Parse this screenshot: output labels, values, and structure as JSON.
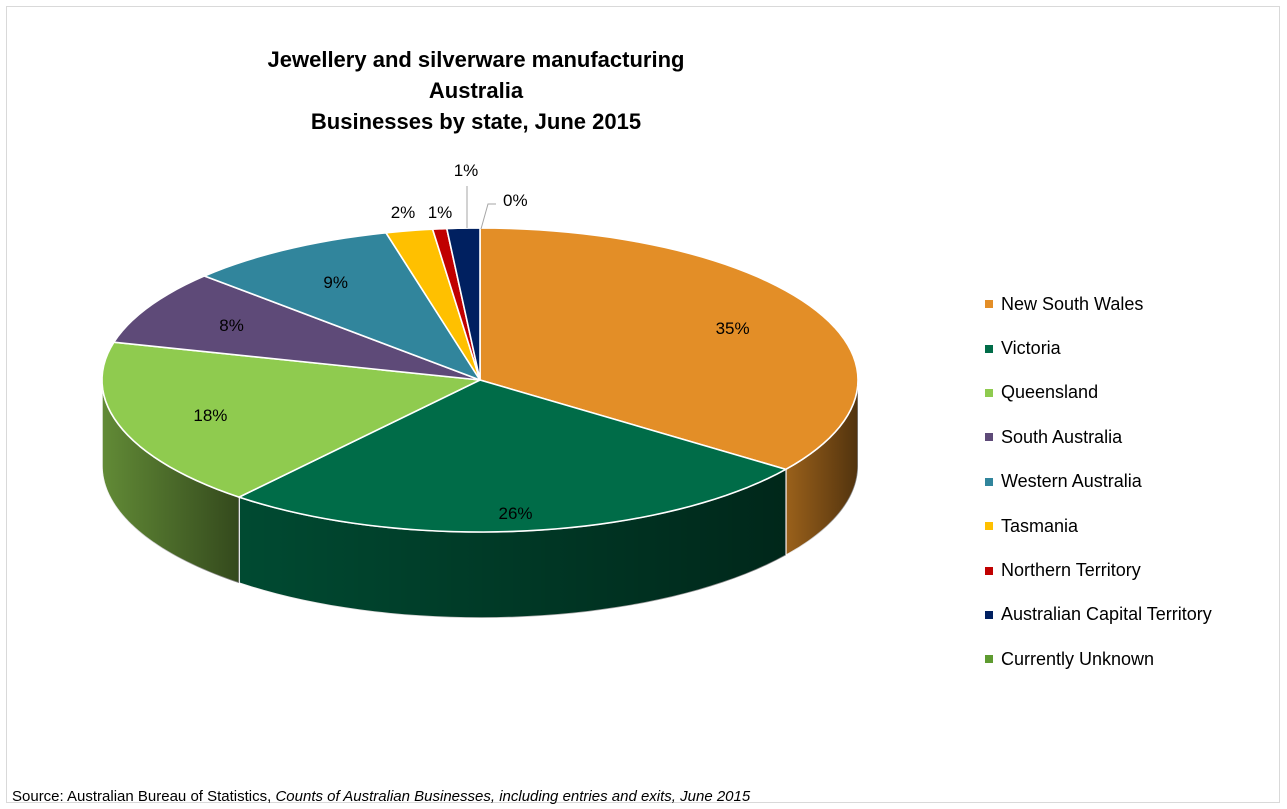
{
  "chart_data": {
    "type": "pie",
    "title_lines": [
      "Jewellery and silverware manufacturing",
      "Australia",
      "Businesses by state, June 2015"
    ],
    "categories": [
      "New South Wales",
      "Victoria",
      "Queensland",
      "South Australia",
      "Western Australia",
      "Tasmania",
      "Northern Territory",
      "Australian Capital Territory",
      "Currently Unknown"
    ],
    "values": [
      35,
      26,
      18,
      8,
      9,
      2,
      0.6,
      1.4,
      0
    ],
    "labels": [
      "35%",
      "26%",
      "18%",
      "8%",
      "9%",
      "2%",
      "1%",
      "1%",
      "0%"
    ],
    "colors": [
      "#E38E27",
      "#006C48",
      "#8FCB4F",
      "#5E4A78",
      "#31859C",
      "#FFC000",
      "#C00000",
      "#002060",
      "#5E9B30"
    ],
    "legend_position": "right",
    "three_d": true
  },
  "source": {
    "prefix": "Source: Australian Bureau of Statistics, ",
    "title": "Counts of Australian Businesses, including entries and exits, June 2015"
  }
}
